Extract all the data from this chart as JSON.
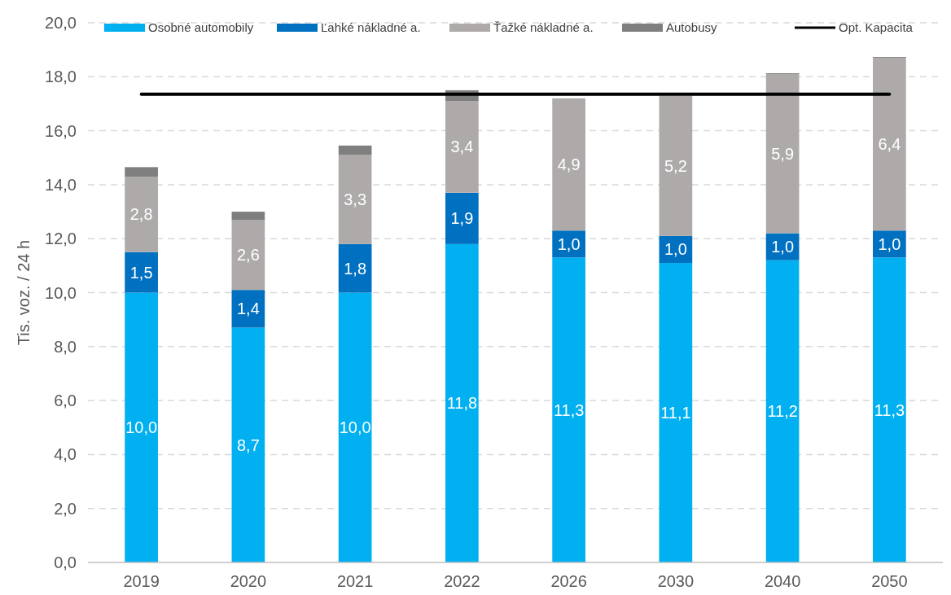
{
  "chart_data": {
    "type": "bar",
    "stacked": true,
    "ylabel": "Tis. voz. / 24 h",
    "categories": [
      "2019",
      "2020",
      "2021",
      "2022",
      "2026",
      "2030",
      "2040",
      "2050"
    ],
    "series": [
      {
        "name": "Osobné automobily",
        "color": "#00b0f0",
        "values": [
          10.0,
          8.7,
          10.0,
          11.8,
          11.3,
          11.1,
          11.2,
          11.3
        ],
        "value_labels": [
          "10,0",
          "8,7",
          "10,0",
          "11,8",
          "11,3",
          "11,1",
          "11,2",
          "11,3"
        ]
      },
      {
        "name": "Ľahké nákladné a.",
        "color": "#0070c0",
        "values": [
          1.5,
          1.4,
          1.8,
          1.9,
          1.0,
          1.0,
          1.0,
          1.0
        ],
        "value_labels": [
          "1,5",
          "1,4",
          "1,8",
          "1,9",
          "1,0",
          "1,0",
          "1,0",
          "1,0"
        ]
      },
      {
        "name": "Ťažké nákladné a.",
        "color": "#aeaaaa",
        "values": [
          2.8,
          2.6,
          3.3,
          3.4,
          4.9,
          5.2,
          5.9,
          6.4
        ],
        "value_labels": [
          "2,8",
          "2,6",
          "3,3",
          "3,4",
          "4,9",
          "5,2",
          "5,9",
          "6,4"
        ]
      },
      {
        "name": "Autobusy",
        "color": "#7f7f7f",
        "values": [
          0.35,
          0.3,
          0.35,
          0.4,
          null,
          null,
          0.03,
          0.03
        ]
      },
      {
        "name": "Opt. Kapacita",
        "type": "line",
        "color": "#000000",
        "values": [
          17.35,
          17.35,
          17.35,
          17.35,
          17.35,
          17.35,
          17.35,
          17.35
        ]
      }
    ],
    "ylim": [
      0,
      20
    ],
    "yticks": [
      {
        "value": 0,
        "label": "0,0"
      },
      {
        "value": 2,
        "label": "2,0"
      },
      {
        "value": 4,
        "label": "4,0"
      },
      {
        "value": 6,
        "label": "6,0"
      },
      {
        "value": 8,
        "label": "8,0"
      },
      {
        "value": 10,
        "label": "10,0"
      },
      {
        "value": 12,
        "label": "12,0"
      },
      {
        "value": 14,
        "label": "14,0"
      },
      {
        "value": 16,
        "label": "16,0"
      },
      {
        "value": 18,
        "label": "18,0"
      },
      {
        "value": 20,
        "label": "20,0"
      }
    ],
    "grid": "y",
    "legend": "top"
  }
}
